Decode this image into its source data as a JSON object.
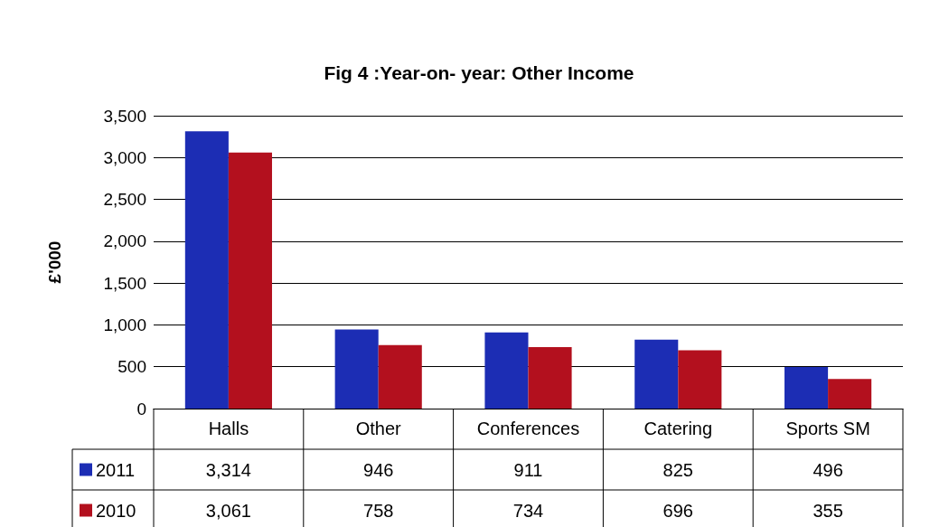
{
  "chart_data": {
    "type": "bar",
    "title": "Fig 4 :Year-on- year: Other Income",
    "ylabel": "£'000",
    "categories": [
      "Halls",
      "Other",
      "Conferences",
      "Catering",
      "Sports SM"
    ],
    "series": [
      {
        "name": "2011",
        "color": "#1c2db4",
        "values": [
          3314,
          946,
          911,
          825,
          496
        ],
        "value_labels": [
          "3,314",
          "946",
          "911",
          "825",
          "496"
        ]
      },
      {
        "name": "2010",
        "color": "#b3101e",
        "values": [
          3061,
          758,
          734,
          696,
          355
        ],
        "value_labels": [
          "3,061",
          "758",
          "734",
          "696",
          "355"
        ]
      }
    ],
    "ylim": [
      0,
      3500
    ],
    "yticks": [
      0,
      {
        "value": 500,
        "label": "500"
      },
      {
        "value": 1000,
        "label": "1,000"
      },
      {
        "value": 1500,
        "label": "1,500"
      },
      {
        "value": 2000,
        "label": "2,000"
      },
      {
        "value": 2500,
        "label": "2,500"
      },
      {
        "value": 3000,
        "label": "3,000"
      },
      {
        "value": 3500,
        "label": "3,500"
      }
    ],
    "grid": "y",
    "legend": "bottom left"
  }
}
